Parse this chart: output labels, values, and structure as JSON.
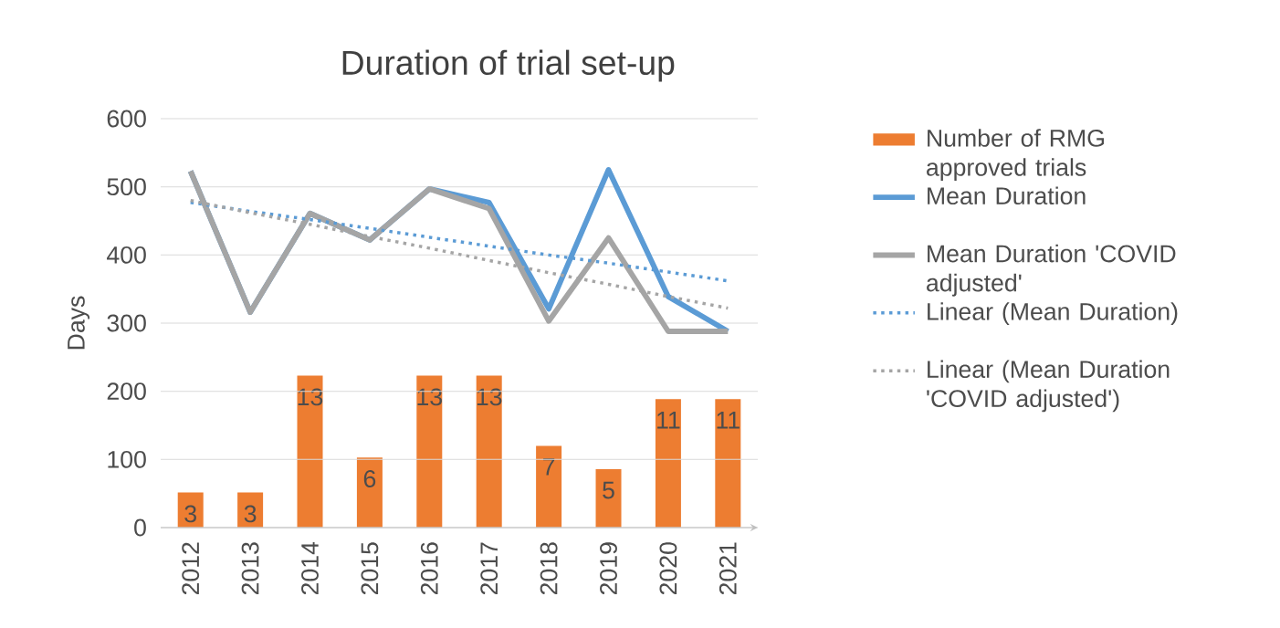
{
  "chart_data": {
    "type": "line",
    "title": "Duration of trial set-up",
    "ylabel": "Days",
    "categories": [
      "2012",
      "2013",
      "2014",
      "2015",
      "2016",
      "2017",
      "2018",
      "2019",
      "2020",
      "2021"
    ],
    "ylim": [
      0,
      600
    ],
    "yticks": [
      0,
      100,
      200,
      300,
      400,
      500,
      600
    ],
    "y2lim": [
      0,
      35
    ],
    "grid": "y",
    "legend": "right",
    "marker": "none",
    "tick_labels": "xy",
    "series": [
      {
        "name": "Number of RMG approved trials",
        "type": "bar",
        "axis": "y2",
        "color": "#ed7d31",
        "values": [
          3,
          3,
          13,
          6,
          13,
          13,
          7,
          5,
          11,
          11
        ],
        "value_labels": [
          "3",
          "3",
          "13",
          "6",
          "13",
          "13",
          "7",
          "5",
          "11",
          "11"
        ]
      },
      {
        "name": "Mean Duration",
        "color": "#5b9bd5",
        "line_style": "solid",
        "values": [
          523,
          316,
          461,
          422,
          497,
          477,
          321,
          525,
          339,
          288
        ]
      },
      {
        "name": "Mean Duration 'COVID adjusted'",
        "color": "#a5a5a5",
        "line_style": "solid",
        "values": [
          523,
          316,
          461,
          422,
          497,
          468,
          303,
          425,
          288,
          288
        ]
      },
      {
        "name": "Linear (Mean Duration)",
        "color": "#5b9bd5",
        "line_style": "dotted",
        "values": [
          477,
          464,
          452,
          439,
          426,
          413,
          400,
          388,
          375,
          362
        ]
      },
      {
        "name": "Linear (Mean Duration 'COVID adjusted')",
        "color": "#a5a5a5",
        "line_style": "dotted",
        "values": [
          480,
          462,
          445,
          427,
          410,
          392,
          374,
          357,
          339,
          322
        ]
      }
    ]
  }
}
